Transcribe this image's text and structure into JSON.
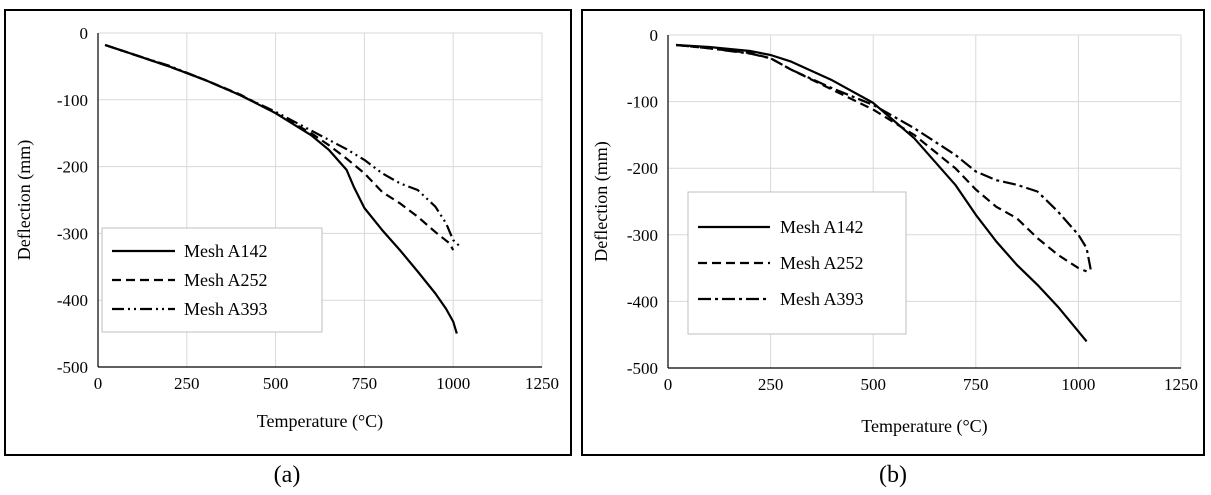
{
  "chart_data": [
    {
      "type": "line",
      "caption": "(a)",
      "xlabel": "Temperature (°C)",
      "ylabel": "Deflection (mm)",
      "xlim": [
        0,
        1250
      ],
      "ylim": [
        -500,
        0
      ],
      "xticks": [
        0,
        250,
        500,
        750,
        1000,
        1250
      ],
      "yticks": [
        0,
        -100,
        -200,
        -300,
        -400,
        -500
      ],
      "grid": true,
      "legend_position": "bottom-left",
      "series": [
        {
          "name": "Mesh A142",
          "dash": "solid",
          "x": [
            20,
            100,
            200,
            300,
            400,
            500,
            600,
            650,
            700,
            720,
            750,
            800,
            850,
            900,
            950,
            980,
            1000,
            1010
          ],
          "y": [
            -18,
            -32,
            -50,
            -70,
            -93,
            -120,
            -153,
            -175,
            -205,
            -230,
            -262,
            -295,
            -325,
            -357,
            -390,
            -413,
            -432,
            -450
          ]
        },
        {
          "name": "Mesh A252",
          "dash": "dashed",
          "x": [
            20,
            100,
            200,
            300,
            400,
            500,
            600,
            650,
            700,
            750,
            800,
            850,
            900,
            950,
            990,
            1000
          ],
          "y": [
            -18,
            -32,
            -50,
            -70,
            -92,
            -120,
            -150,
            -168,
            -188,
            -210,
            -238,
            -255,
            -275,
            -298,
            -315,
            -325
          ]
        },
        {
          "name": "Mesh A393",
          "dash": "dash-dot-dot",
          "x": [
            20,
            100,
            200,
            300,
            400,
            500,
            600,
            650,
            700,
            750,
            800,
            850,
            900,
            950,
            980,
            1000,
            1020
          ],
          "y": [
            -18,
            -32,
            -49,
            -70,
            -93,
            -118,
            -146,
            -160,
            -174,
            -190,
            -210,
            -225,
            -235,
            -260,
            -285,
            -310,
            -320
          ]
        }
      ]
    },
    {
      "type": "line",
      "caption": "(b)",
      "xlabel": "Temperature (°C)",
      "ylabel": "Deflection (mm)",
      "xlim": [
        0,
        1250
      ],
      "ylim": [
        -500,
        0
      ],
      "xticks": [
        0,
        250,
        500,
        750,
        1000,
        1250
      ],
      "yticks": [
        0,
        -100,
        -200,
        -300,
        -400,
        -500
      ],
      "grid": true,
      "legend_position": "bottom-left",
      "series": [
        {
          "name": "Mesh A142",
          "dash": "solid",
          "x": [
            20,
            100,
            200,
            250,
            300,
            400,
            500,
            600,
            700,
            750,
            800,
            850,
            900,
            950,
            1000,
            1020
          ],
          "y": [
            -15,
            -18,
            -24,
            -30,
            -40,
            -68,
            -102,
            -155,
            -225,
            -270,
            -310,
            -345,
            -375,
            -408,
            -445,
            -460
          ]
        },
        {
          "name": "Mesh A252",
          "dash": "dashed",
          "x": [
            20,
            100,
            200,
            250,
            300,
            400,
            500,
            600,
            700,
            750,
            800,
            850,
            900,
            950,
            1000,
            1020
          ],
          "y": [
            -15,
            -20,
            -27,
            -35,
            -52,
            -82,
            -112,
            -150,
            -200,
            -232,
            -258,
            -275,
            -305,
            -330,
            -350,
            -355
          ]
        },
        {
          "name": "Mesh A393",
          "dash": "dash-dot",
          "x": [
            20,
            100,
            200,
            250,
            300,
            400,
            500,
            600,
            700,
            750,
            800,
            850,
            900,
            950,
            1000,
            1020,
            1030
          ],
          "y": [
            -15,
            -20,
            -28,
            -35,
            -52,
            -80,
            -105,
            -140,
            -180,
            -205,
            -218,
            -225,
            -235,
            -265,
            -300,
            -320,
            -352
          ]
        }
      ]
    }
  ]
}
